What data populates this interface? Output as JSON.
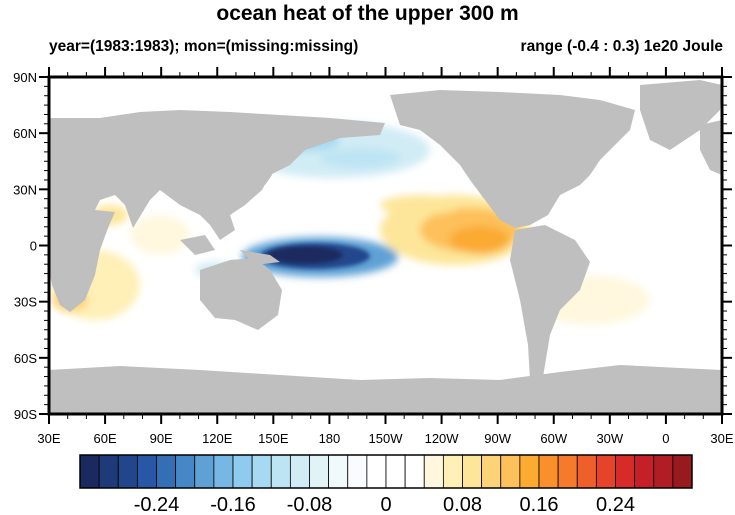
{
  "title": "ocean heat of the upper 300 m",
  "subtitle_left": "year=(1983:1983); mon=(missing:missing)",
  "subtitle_right": "range (-0.4 : 0.3) 1e20 Joule",
  "map": {
    "projection": "cylindrical equidistant",
    "lon_range": [
      30,
      390
    ],
    "lat_range": [
      -90,
      90
    ],
    "land_color": "#bfbfbf",
    "missing_color": "#ffffff",
    "lat_labels": [
      "90N",
      "60N",
      "30N",
      "0",
      "30S",
      "60S",
      "90S"
    ],
    "lon_labels": [
      "30E",
      "60E",
      "90E",
      "120E",
      "150E",
      "180",
      "150W",
      "120W",
      "90W",
      "60W",
      "30W",
      "0",
      "30E"
    ]
  },
  "colorbar": {
    "min": -0.32,
    "max": 0.32,
    "step": 0.02,
    "labels": [
      "-0.24",
      "-0.16",
      "-0.08",
      "0",
      "0.08",
      "0.16",
      "0.24"
    ],
    "label_values": [
      -0.24,
      -0.16,
      -0.08,
      0,
      0.08,
      0.16,
      0.24
    ],
    "colors": [
      "#1b2a5e",
      "#1f3a78",
      "#22468c",
      "#2857a6",
      "#336fb5",
      "#4688c7",
      "#5fa1d5",
      "#77b7e4",
      "#8ecbee",
      "#a6daf3",
      "#bde4f3",
      "#d1ecf5",
      "#e2f3f8",
      "#f0f9fc",
      "#f9fcfe",
      "#ffffff",
      "#ffffff",
      "#ffffff",
      "#fff8df",
      "#fff0b8",
      "#fde69a",
      "#fdd37a",
      "#fdc05a",
      "#fbaa32",
      "#f9902b",
      "#f57a2b",
      "#ee5f2a",
      "#e5432a",
      "#d62b28",
      "#c5202a",
      "#b11d25",
      "#971a1f"
    ]
  }
}
